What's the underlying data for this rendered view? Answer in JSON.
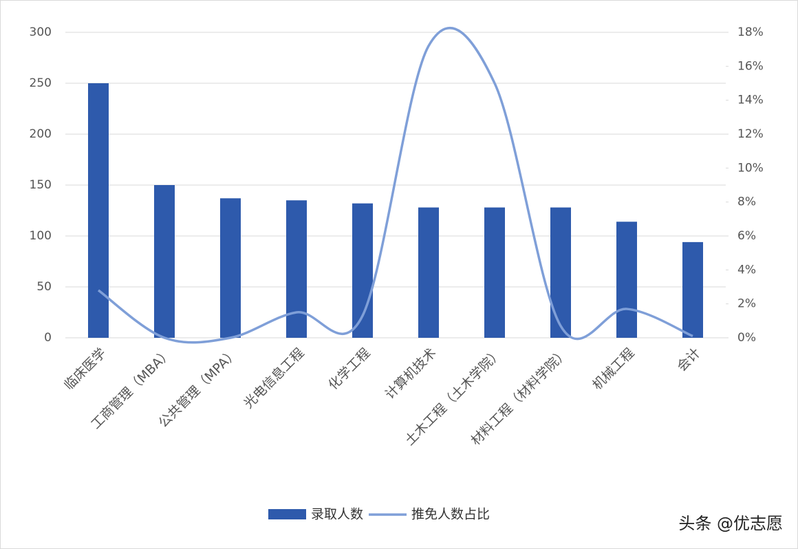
{
  "chart_data": {
    "type": "bar-line",
    "categories": [
      "临床医学",
      "工商管理（MBA）",
      "公共管理（MPA）",
      "光电信息工程",
      "化学工程",
      "计算机技术",
      "土木工程（土木学院）",
      "材料工程（材料学院）",
      "机械工程",
      "会计"
    ],
    "series": [
      {
        "name": "录取人数",
        "type": "bar",
        "color": "#2e5aac",
        "values": [
          250,
          150,
          137,
          135,
          132,
          128,
          128,
          128,
          114,
          94
        ]
      },
      {
        "name": "推免人数占比",
        "type": "line",
        "axis": "y2",
        "color": "#7f9fd8",
        "values": [
          2.8,
          0,
          0,
          1.5,
          1.3,
          17.2,
          15,
          0.7,
          1.7,
          0.1
        ]
      }
    ],
    "ylim": [
      0,
      300
    ],
    "yticks": [
      0,
      50,
      100,
      150,
      200,
      250,
      300
    ],
    "y2lim": [
      0,
      18
    ],
    "y2ticks": [
      {
        "value": 0,
        "label": "0%"
      },
      {
        "value": 2,
        "label": "2%"
      },
      {
        "value": 4,
        "label": "4%"
      },
      {
        "value": 6,
        "label": "6%"
      },
      {
        "value": 8,
        "label": "8%"
      },
      {
        "value": 10,
        "label": "10%"
      },
      {
        "value": 12,
        "label": "12%"
      },
      {
        "value": 14,
        "label": "14%"
      },
      {
        "value": 16,
        "label": "16%"
      },
      {
        "value": 18,
        "label": "18%"
      }
    ],
    "grid": true,
    "legend": "bottom",
    "footer": "头条 @优志愿"
  }
}
